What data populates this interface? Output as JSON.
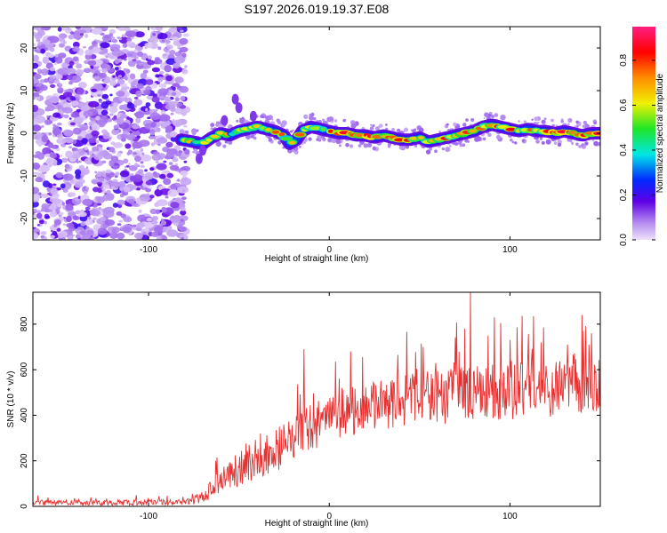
{
  "title": "S197.2026.019.19.37.E08",
  "chart_data": [
    {
      "type": "heatmap",
      "description": "Spectrogram: frequency vs height of straight line, colour = normalized spectral amplitude",
      "xlabel": "Height of straight line (km)",
      "ylabel": "Frequency (Hz)",
      "xlim": [
        -164,
        150
      ],
      "ylim": [
        -25,
        25
      ],
      "xticks": [
        -100,
        0,
        100
      ],
      "yticks": [
        -20,
        -10,
        0,
        10,
        20
      ],
      "xtick_labels": [
        "-100",
        "0",
        "100"
      ],
      "ytick_labels": [
        "-20",
        "-10",
        "0",
        "10",
        "20"
      ],
      "noise_region_x": [
        -164,
        -82
      ],
      "ridge_start_x": -82,
      "ridge": {
        "x": [
          -82,
          -75,
          -70,
          -65,
          -60,
          -55,
          -50,
          -45,
          -40,
          -35,
          -30,
          -25,
          -22,
          -18,
          -15,
          -10,
          -5,
          0,
          5,
          10,
          15,
          20,
          25,
          30,
          35,
          40,
          45,
          50,
          55,
          60,
          65,
          70,
          75,
          80,
          85,
          90,
          95,
          100,
          105,
          110,
          115,
          120,
          125,
          130,
          135,
          140,
          145,
          150
        ],
        "freq": [
          -1.5,
          -2.0,
          -2.5,
          -1.0,
          0.0,
          -0.5,
          0.5,
          1.0,
          1.5,
          1.0,
          0.5,
          -0.5,
          -2.5,
          -1.5,
          0.5,
          1.5,
          1.0,
          0.5,
          0.0,
          0.0,
          -0.5,
          -0.5,
          -1.0,
          -0.5,
          -1.0,
          -1.5,
          -1.5,
          -1.0,
          -2.0,
          -1.5,
          -1.0,
          -0.5,
          0.0,
          0.5,
          1.5,
          2.0,
          1.5,
          1.0,
          0.5,
          1.0,
          0.5,
          0.5,
          0.0,
          0.5,
          0.0,
          -0.5,
          0.0,
          0.0
        ]
      },
      "colorbar": {
        "label": "Normalized spectral amplitude",
        "range": [
          0,
          0.95
        ],
        "ticks": [
          0.0,
          0.2,
          0.4,
          0.6,
          0.8
        ],
        "tick_labels": [
          "0.0",
          "0.2",
          "0.4",
          "0.6",
          "0.8"
        ]
      }
    },
    {
      "type": "line",
      "series": [
        {
          "name": "SNR",
          "color": "#e83030"
        }
      ],
      "xlabel": "Height of straight line (km)",
      "ylabel": "SNR (10 * v/v)",
      "xlim": [
        -164,
        150
      ],
      "ylim": [
        0,
        940
      ],
      "xticks": [
        -100,
        0,
        100
      ],
      "yticks": [
        0,
        200,
        400,
        600,
        800
      ],
      "xtick_labels": [
        "-100",
        "0",
        "100"
      ],
      "ytick_labels": [
        "0",
        "200",
        "400",
        "600",
        "800"
      ],
      "trend": {
        "x": [
          -164,
          -80,
          -70,
          -60,
          -50,
          -40,
          -30,
          -20,
          -10,
          0,
          10,
          20,
          30,
          40,
          60,
          80,
          100,
          120,
          150
        ],
        "baseline": [
          15,
          18,
          40,
          110,
          160,
          200,
          240,
          300,
          350,
          390,
          420,
          440,
          455,
          465,
          480,
          495,
          505,
          515,
          530
        ],
        "spread": [
          12,
          12,
          30,
          60,
          80,
          90,
          95,
          100,
          105,
          110,
          115,
          115,
          115,
          120,
          120,
          125,
          125,
          125,
          125
        ]
      },
      "peaks": [
        {
          "x": -62,
          "y": 215
        },
        {
          "x": -38,
          "y": 320
        },
        {
          "x": -14,
          "y": 690
        },
        {
          "x": 38,
          "y": 665
        },
        {
          "x": 52,
          "y": 700
        },
        {
          "x": 78,
          "y": 940
        },
        {
          "x": 75,
          "y": 780
        },
        {
          "x": 95,
          "y": 805
        },
        {
          "x": 113,
          "y": 835
        },
        {
          "x": 140,
          "y": 840
        },
        {
          "x": 145,
          "y": 760
        },
        {
          "x": 88,
          "y": 750
        }
      ]
    }
  ]
}
